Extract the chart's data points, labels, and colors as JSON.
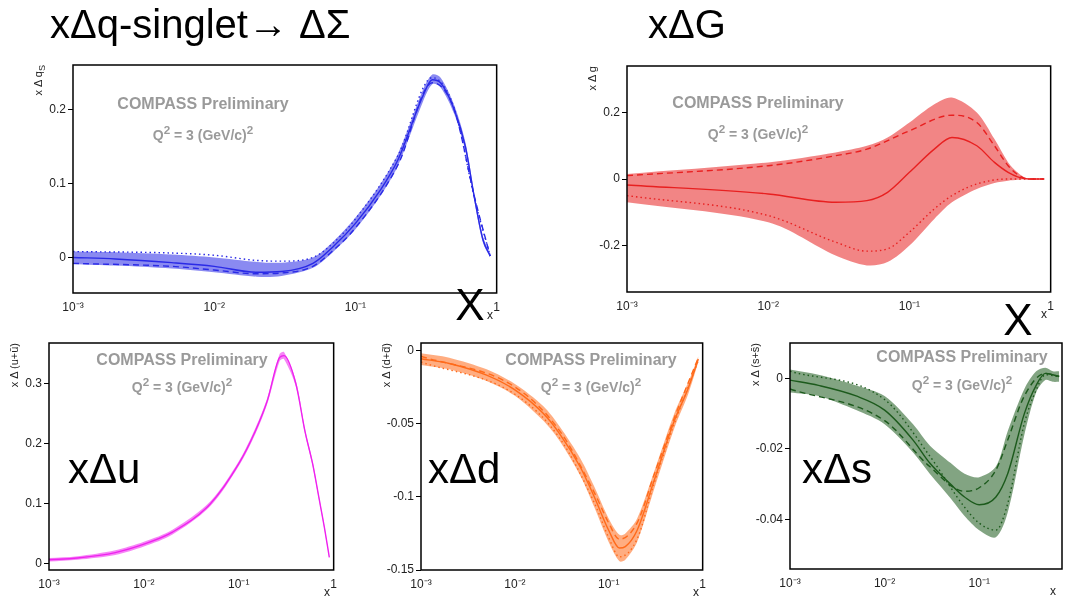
{
  "chart_data": [
    {
      "type": "line",
      "title": "xΔq-singlet→ ΔΣ",
      "xlabel": "x",
      "ylabel": "x Δ q$_{S}$",
      "annotations": [
        "COMPASS Preliminary",
        "Q$^{2}$ = 3 (GeV/c)$^{2}$",
        "X"
      ],
      "log": "x",
      "xlim": [
        0.001,
        1
      ],
      "ylim": [
        -0.048,
        0.26
      ],
      "xticks": [
        {
          "value": 0.001,
          "label": "10⁻³"
        },
        {
          "value": 0.01,
          "label": "10⁻²"
        },
        {
          "value": 0.1,
          "label": "10⁻¹"
        },
        {
          "value": 1,
          "label": "1"
        }
      ],
      "yticks": [
        0,
        0.1,
        0.2
      ],
      "series": [
        {
          "color": "#2a2ae6",
          "line_style": "solid",
          "x": [
            0.001,
            0.002,
            0.005,
            0.01,
            0.02,
            0.03,
            0.05,
            0.07,
            0.1,
            0.15,
            0.2,
            0.3,
            0.35,
            0.4,
            0.5,
            0.6,
            0.7,
            0.8,
            0.9
          ],
          "values": [
            0,
            -0.002,
            -0.007,
            -0.012,
            -0.02,
            -0.019,
            -0.008,
            0.015,
            0.046,
            0.091,
            0.132,
            0.218,
            0.24,
            0.236,
            0.2,
            0.15,
            0.078,
            0.024,
            0.002
          ],
          "lower": [
            -0.009,
            -0.011,
            -0.015,
            -0.02,
            -0.026,
            -0.025,
            -0.014,
            0.008,
            0.038,
            0.083,
            0.124,
            0.21,
            0.234,
            0.23,
            0.194,
            0.144,
            0.073,
            0.02,
            0.0
          ],
          "upper": [
            0.008,
            0.007,
            0.004,
            0.0,
            -0.006,
            -0.007,
            0.0,
            0.022,
            0.054,
            0.099,
            0.14,
            0.226,
            0.247,
            0.243,
            0.206,
            0.156,
            0.083,
            0.028,
            0.004
          ]
        },
        {
          "color": "#2a2ae6",
          "line_style": "dashed",
          "x": [
            0.001,
            0.005,
            0.01,
            0.02,
            0.03,
            0.05,
            0.07,
            0.1,
            0.2,
            0.35,
            0.5,
            0.7,
            0.9
          ],
          "values": [
            -0.008,
            -0.012,
            -0.017,
            -0.022,
            -0.021,
            -0.012,
            0.01,
            0.04,
            0.125,
            0.236,
            0.2,
            0.08,
            0.002
          ]
        },
        {
          "color": "#2a2ae6",
          "line_style": "dotted",
          "x": [
            0.001,
            0.005,
            0.01,
            0.02,
            0.03,
            0.05,
            0.07,
            0.1,
            0.2,
            0.35,
            0.5,
            0.7,
            0.9
          ],
          "values": [
            0.008,
            0.006,
            0.003,
            -0.004,
            -0.005,
            0.0,
            0.02,
            0.052,
            0.138,
            0.243,
            0.202,
            0.078,
            0.002
          ]
        }
      ]
    },
    {
      "type": "line",
      "title": "xΔG",
      "xlabel": "x",
      "ylabel": "x Δ g",
      "annotations": [
        "COMPASS Preliminary",
        "Q$^{2}$ = 3 (GeV/c)$^{2}$",
        "X"
      ],
      "log": "x",
      "xlim": [
        0.001,
        1
      ],
      "ylim": [
        -0.34,
        0.34
      ],
      "xticks": [
        {
          "value": 0.001,
          "label": "10⁻³"
        },
        {
          "value": 0.01,
          "label": "10⁻²"
        },
        {
          "value": 0.1,
          "label": "10⁻¹"
        },
        {
          "value": 1,
          "label": "1"
        }
      ],
      "yticks": [
        -0.2,
        0,
        0.2
      ],
      "series": [
        {
          "color": "#e82020",
          "line_style": "solid",
          "x": [
            0.001,
            0.01,
            0.03,
            0.05,
            0.07,
            0.1,
            0.15,
            0.2,
            0.3,
            0.4,
            0.5,
            0.6,
            0.7,
            0.9
          ],
          "values": [
            -0.018,
            -0.045,
            -0.07,
            -0.065,
            -0.04,
            0.02,
            0.09,
            0.125,
            0.1,
            0.05,
            0.02,
            0.005,
            0,
            0
          ],
          "lower": [
            -0.07,
            -0.13,
            -0.23,
            -0.26,
            -0.25,
            -0.2,
            -0.12,
            -0.07,
            -0.03,
            -0.012,
            -0.005,
            -0.002,
            0,
            0
          ],
          "upper": [
            0.015,
            0.05,
            0.08,
            0.1,
            0.125,
            0.17,
            0.225,
            0.245,
            0.2,
            0.12,
            0.05,
            0.015,
            0,
            0
          ]
        },
        {
          "color": "#e82020",
          "line_style": "dashed",
          "x": [
            0.001,
            0.01,
            0.03,
            0.05,
            0.1,
            0.2,
            0.3,
            0.4,
            0.5,
            0.6,
            0.7,
            0.9
          ],
          "values": [
            0.01,
            0.04,
            0.07,
            0.09,
            0.145,
            0.192,
            0.17,
            0.1,
            0.04,
            0.01,
            0,
            0
          ]
        },
        {
          "color": "#e82020",
          "line_style": "dotted",
          "x": [
            0.001,
            0.01,
            0.03,
            0.05,
            0.07,
            0.1,
            0.15,
            0.2,
            0.3,
            0.5,
            0.7,
            0.9
          ],
          "values": [
            -0.05,
            -0.11,
            -0.19,
            -0.217,
            -0.21,
            -0.16,
            -0.09,
            -0.05,
            -0.015,
            0,
            0,
            0
          ]
        }
      ]
    },
    {
      "type": "line",
      "title": "xΔu",
      "xlabel": "x",
      "ylabel": "x Δ (u+ū)",
      "annotations": [
        "COMPASS Preliminary",
        "Q$^{2}$ = 3 (GeV/c)$^{2}$"
      ],
      "log": "x",
      "xlim": [
        0.001,
        1
      ],
      "ylim": [
        -0.01,
        0.368
      ],
      "xticks": [
        {
          "value": 0.001,
          "label": "10⁻³"
        },
        {
          "value": 0.01,
          "label": "10⁻²"
        },
        {
          "value": 0.1,
          "label": "10⁻¹"
        },
        {
          "value": 1,
          "label": "1"
        }
      ],
      "yticks": [
        0,
        0.1,
        0.2,
        0.3
      ],
      "series": [
        {
          "color": "#ee22ee",
          "line_style": "solid",
          "x": [
            0.001,
            0.002,
            0.005,
            0.01,
            0.02,
            0.05,
            0.1,
            0.15,
            0.2,
            0.27,
            0.3,
            0.4,
            0.5,
            0.6,
            0.7,
            0.8,
            0.9
          ],
          "values": [
            0.007,
            0.01,
            0.019,
            0.033,
            0.053,
            0.1,
            0.167,
            0.222,
            0.272,
            0.344,
            0.347,
            0.3,
            0.22,
            0.167,
            0.11,
            0.06,
            0.011
          ],
          "lower": [
            0.004,
            0.007,
            0.015,
            0.029,
            0.049,
            0.096,
            0.163,
            0.217,
            0.267,
            0.338,
            0.341,
            0.295,
            0.216,
            0.163,
            0.107,
            0.057,
            0.009
          ],
          "upper": [
            0.01,
            0.013,
            0.023,
            0.037,
            0.057,
            0.104,
            0.171,
            0.227,
            0.277,
            0.35,
            0.353,
            0.305,
            0.224,
            0.171,
            0.113,
            0.063,
            0.013
          ]
        }
      ]
    },
    {
      "type": "line",
      "title": "xΔd",
      "xlabel": "x",
      "ylabel": "x Δ (d+d̄)",
      "annotations": [
        "COMPASS Preliminary",
        "Q$^{2}$ = 3 (GeV/c)$^{2}$"
      ],
      "log": "x",
      "xlim": [
        0.001,
        1
      ],
      "ylim": [
        -0.15,
        0.005
      ],
      "xticks": [
        {
          "value": 0.001,
          "label": "10⁻³"
        },
        {
          "value": 0.01,
          "label": "10⁻²"
        },
        {
          "value": 0.1,
          "label": "10⁻¹"
        },
        {
          "value": 1,
          "label": "1"
        }
      ],
      "yticks": [
        -0.15,
        -0.1,
        -0.05,
        0
      ],
      "series": [
        {
          "color": "#ff6a1a",
          "line_style": "solid",
          "x": [
            0.001,
            0.002,
            0.005,
            0.01,
            0.02,
            0.03,
            0.05,
            0.07,
            0.1,
            0.13,
            0.15,
            0.2,
            0.3,
            0.5,
            0.7,
            0.9
          ],
          "values": [
            -0.0057,
            -0.009,
            -0.017,
            -0.027,
            -0.043,
            -0.057,
            -0.08,
            -0.1,
            -0.123,
            -0.135,
            -0.134,
            -0.123,
            -0.09,
            -0.048,
            -0.026,
            -0.006
          ],
          "lower": [
            -0.01,
            -0.013,
            -0.021,
            -0.031,
            -0.048,
            -0.062,
            -0.086,
            -0.107,
            -0.131,
            -0.144,
            -0.143,
            -0.131,
            -0.096,
            -0.053,
            -0.03,
            -0.008
          ],
          "upper": [
            -0.002,
            -0.005,
            -0.013,
            -0.023,
            -0.038,
            -0.052,
            -0.074,
            -0.093,
            -0.115,
            -0.126,
            -0.125,
            -0.115,
            -0.084,
            -0.043,
            -0.022,
            -0.004
          ]
        },
        {
          "color": "#ff6a1a",
          "line_style": "dashed",
          "x": [
            0.001,
            0.01,
            0.03,
            0.07,
            0.1,
            0.13,
            0.2,
            0.3,
            0.5,
            0.9
          ],
          "values": [
            -0.004,
            -0.025,
            -0.055,
            -0.097,
            -0.118,
            -0.129,
            -0.118,
            -0.086,
            -0.046,
            -0.005
          ]
        },
        {
          "color": "#ff6a1a",
          "line_style": "dotted",
          "x": [
            0.001,
            0.01,
            0.03,
            0.07,
            0.1,
            0.13,
            0.2,
            0.3,
            0.5,
            0.9
          ],
          "values": [
            -0.008,
            -0.03,
            -0.06,
            -0.104,
            -0.128,
            -0.141,
            -0.129,
            -0.092,
            -0.05,
            -0.007
          ]
        }
      ]
    },
    {
      "type": "line",
      "title": "xΔs",
      "xlabel": "x",
      "ylabel": "x Δ (s+s̄)",
      "annotations": [
        "COMPASS Preliminary",
        "Q$^{2}$ = 3 (GeV/c)$^{2}$"
      ],
      "log": "x",
      "xlim": [
        0.001,
        0.75
      ],
      "ylim": [
        -0.054,
        0.01
      ],
      "xticks": [
        {
          "value": 0.001,
          "label": "10⁻³"
        },
        {
          "value": 0.01,
          "label": "10⁻²"
        },
        {
          "value": 0.1,
          "label": "10⁻¹"
        }
      ],
      "yticks": [
        -0.04,
        -0.02,
        0
      ],
      "series": [
        {
          "color": "#1c5a1c",
          "line_style": "solid",
          "x": [
            0.001,
            0.002,
            0.005,
            0.01,
            0.02,
            0.03,
            0.05,
            0.07,
            0.1,
            0.15,
            0.2,
            0.3,
            0.4,
            0.5,
            0.6,
            0.7
          ],
          "values": [
            -0.0005,
            -0.002,
            -0.005,
            -0.009,
            -0.0175,
            -0.024,
            -0.03,
            -0.0336,
            -0.0358,
            -0.0336,
            -0.027,
            -0.01,
            -0.002,
            0.0014,
            0.001,
            0.0005
          ],
          "lower": [
            -0.004,
            -0.005,
            -0.009,
            -0.013,
            -0.021,
            -0.027,
            -0.034,
            -0.039,
            -0.043,
            -0.045,
            -0.038,
            -0.016,
            -0.004,
            -0.0005,
            -0.001,
            -0.001
          ],
          "upper": [
            0.0025,
            0.001,
            -0.002,
            -0.005,
            -0.013,
            -0.019,
            -0.024,
            -0.027,
            -0.028,
            -0.025,
            -0.015,
            -0.003,
            0.002,
            0.003,
            0.002,
            0.002
          ]
        },
        {
          "color": "#1c5a1c",
          "line_style": "dashed",
          "x": [
            0.001,
            0.01,
            0.03,
            0.07,
            0.1,
            0.15,
            0.2,
            0.3,
            0.5,
            0.7
          ],
          "values": [
            -0.003,
            -0.012,
            -0.025,
            -0.032,
            -0.031,
            -0.026,
            -0.0175,
            -0.005,
            0.0014,
            0.0005
          ]
        },
        {
          "color": "#1c5a1c",
          "line_style": "dotted",
          "x": [
            0.001,
            0.01,
            0.03,
            0.07,
            0.1,
            0.15,
            0.2,
            0.3,
            0.4,
            0.5,
            0.7
          ],
          "values": [
            0.002,
            -0.006,
            -0.022,
            -0.0365,
            -0.041,
            -0.043,
            -0.0355,
            -0.0128,
            -0.0033,
            0.001,
            0.0005
          ]
        }
      ]
    }
  ]
}
